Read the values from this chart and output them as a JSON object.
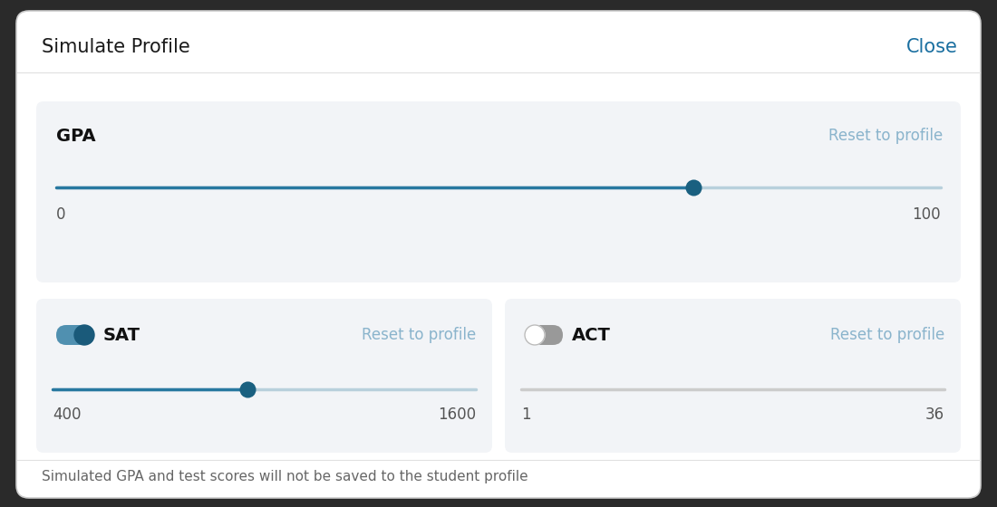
{
  "title": "Simulate Profile",
  "close_text": "Close",
  "close_color": "#1a6fa0",
  "bg_color": "#ffffff",
  "outer_bg": "#3a3a3a",
  "panel_bg": "#f2f4f7",
  "border_color": "#cccccc",
  "title_color": "#1a1a1a",
  "footer_text": "Simulated GPA and test scores will not be saved to the student profile",
  "footer_color": "#666666",
  "reset_color": "#8ab4cc",
  "gpa_label": "GPA",
  "gpa_min": "0",
  "gpa_max": "100",
  "gpa_value": 0.72,
  "slider_track_color": "#2878a0",
  "slider_track_inactive": "#b8d0dc",
  "slider_handle_color": "#1a6080",
  "sat_label": "SAT",
  "sat_min": "400",
  "sat_max": "1600",
  "sat_value": 0.46,
  "act_label": "ACT",
  "act_min": "1",
  "act_max": "36",
  "act_slider_color": "#cccccc",
  "toggle_on_track": "#5090b0",
  "toggle_on_thumb": "#1a5a7a",
  "toggle_off_track": "#999999",
  "toggle_off_thumb": "#ffffff",
  "toggle_off_thumb_border": "#bbbbbb",
  "label_color": "#111111",
  "separator_color": "#e0e0e0",
  "title_fontsize": 15,
  "close_fontsize": 15,
  "label_fontsize": 14,
  "reset_fontsize": 12,
  "minmax_fontsize": 12,
  "footer_fontsize": 11
}
